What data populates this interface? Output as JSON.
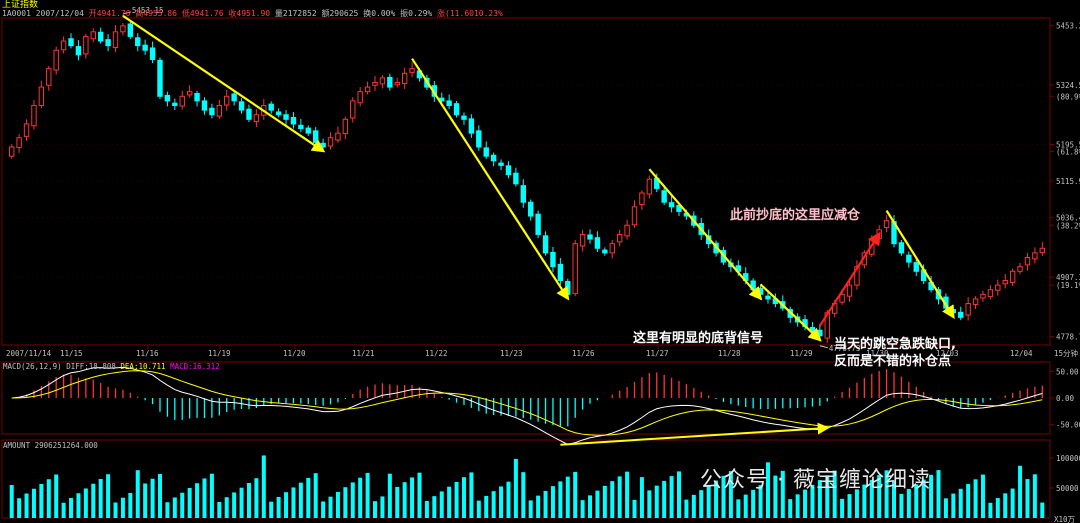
{
  "header": {
    "index_name": "上证指数",
    "code": "1A0001",
    "date": "2007/12/04",
    "open_label": "开",
    "open_value": "4941.76",
    "high_label": "高",
    "high_value": "4955.86",
    "low_label": "低",
    "low_value": "4941.76",
    "close_label": "收",
    "close_value": "4951.90",
    "volume_label": "量",
    "volume_value": "2172852",
    "amount_label": "额",
    "amount_value": "290625",
    "turnover_label": "换",
    "turnover_value": "0.00%",
    "amplitude_label": "振",
    "amplitude_value": "0.29%",
    "change_label": "涨",
    "change_value": "(11.6010.23%"
  },
  "annotations": {
    "reduce_position": "此前抄底的这里应减仓",
    "divergence_signal": "这里有明显的底背信号",
    "gap_line1": "当天的跳空急跌缺口,",
    "gap_line2": "反而是不错的补仓点"
  },
  "watermark": "公众号 · 薇宝缠论细读",
  "colors": {
    "up": "#ff3333",
    "down": "#00ffff",
    "yellow_arrow": "#ffff00",
    "red_arrow": "#ff2020",
    "grid": "#7a0000",
    "axis_text": "#c0c0c0",
    "dif_line": "#ffffff",
    "dea_line": "#ffff00",
    "volume": "#00ffff"
  },
  "chart_data": [
    {
      "type": "candlestick",
      "price_high_label": "5453.15",
      "price_low_label": "4778.73",
      "y_ticks": [
        "5453.2",
        "5324.5",
        "(80.9%)",
        "5195.5",
        "(61.8%)",
        "5115.9",
        "5036.4",
        "(38.2%)",
        "4907.3",
        "(19.1%)",
        "4778.7"
      ],
      "x_ticks": [
        "2007/11/14",
        "11/15",
        "11/16",
        "11/19",
        "11/20",
        "11/21",
        "11/22",
        "11/23",
        "11/26",
        "11/27",
        "11/28",
        "11/29",
        "11/30",
        "12/03",
        "12/04"
      ],
      "x_axis_right_label": "15分钟",
      "ylim": [
        4760,
        5470
      ],
      "closes": [
        5190,
        5210,
        5240,
        5280,
        5320,
        5360,
        5400,
        5420,
        5410,
        5390,
        5430,
        5440,
        5420,
        5410,
        5440,
        5453,
        5430,
        5410,
        5400,
        5380,
        5300,
        5290,
        5280,
        5300,
        5310,
        5290,
        5270,
        5260,
        5280,
        5300,
        5290,
        5270,
        5250,
        5260,
        5280,
        5270,
        5260,
        5250,
        5240,
        5230,
        5220,
        5200,
        5190,
        5210,
        5220,
        5250,
        5290,
        5310,
        5320,
        5330,
        5340,
        5320,
        5330,
        5350,
        5360,
        5340,
        5320,
        5300,
        5290,
        5280,
        5260,
        5250,
        5220,
        5190,
        5170,
        5160,
        5150,
        5130,
        5110,
        5070,
        5040,
        5000,
        4960,
        4930,
        4900,
        4870,
        4980,
        5000,
        4990,
        4970,
        4960,
        4980,
        5000,
        5020,
        5060,
        5090,
        5120,
        5100,
        5070,
        5060,
        5050,
        5040,
        5020,
        5000,
        4980,
        4960,
        4940,
        4930,
        4920,
        4900,
        4880,
        4870,
        4860,
        4850,
        4840,
        4820,
        4810,
        4800,
        4790,
        4780,
        4830,
        4850,
        4870,
        4890,
        4930,
        4960,
        4990,
        5010,
        5030,
        4980,
        4960,
        4940,
        4920,
        4900,
        4880,
        4860,
        4840,
        4830,
        4820,
        4850,
        4860,
        4870,
        4880,
        4890,
        4900,
        4920,
        4930,
        4950,
        4960,
        4970
      ],
      "macd_label": "MACD(26,12,9)",
      "dif_label": "DIFF:",
      "dif_value": "18.808",
      "dea_label": "DEA:",
      "dea_value": "10.711",
      "macd_value_label": "MACD:",
      "macd_value": "16.312",
      "macd_ticks": [
        "50.00",
        "0.00",
        "-50.00"
      ],
      "amount_label": "AMOUNT",
      "amount_value": "2906251264.000",
      "amount_ticks": [
        "100000",
        "50000"
      ],
      "amount_unit": "X10万"
    }
  ]
}
